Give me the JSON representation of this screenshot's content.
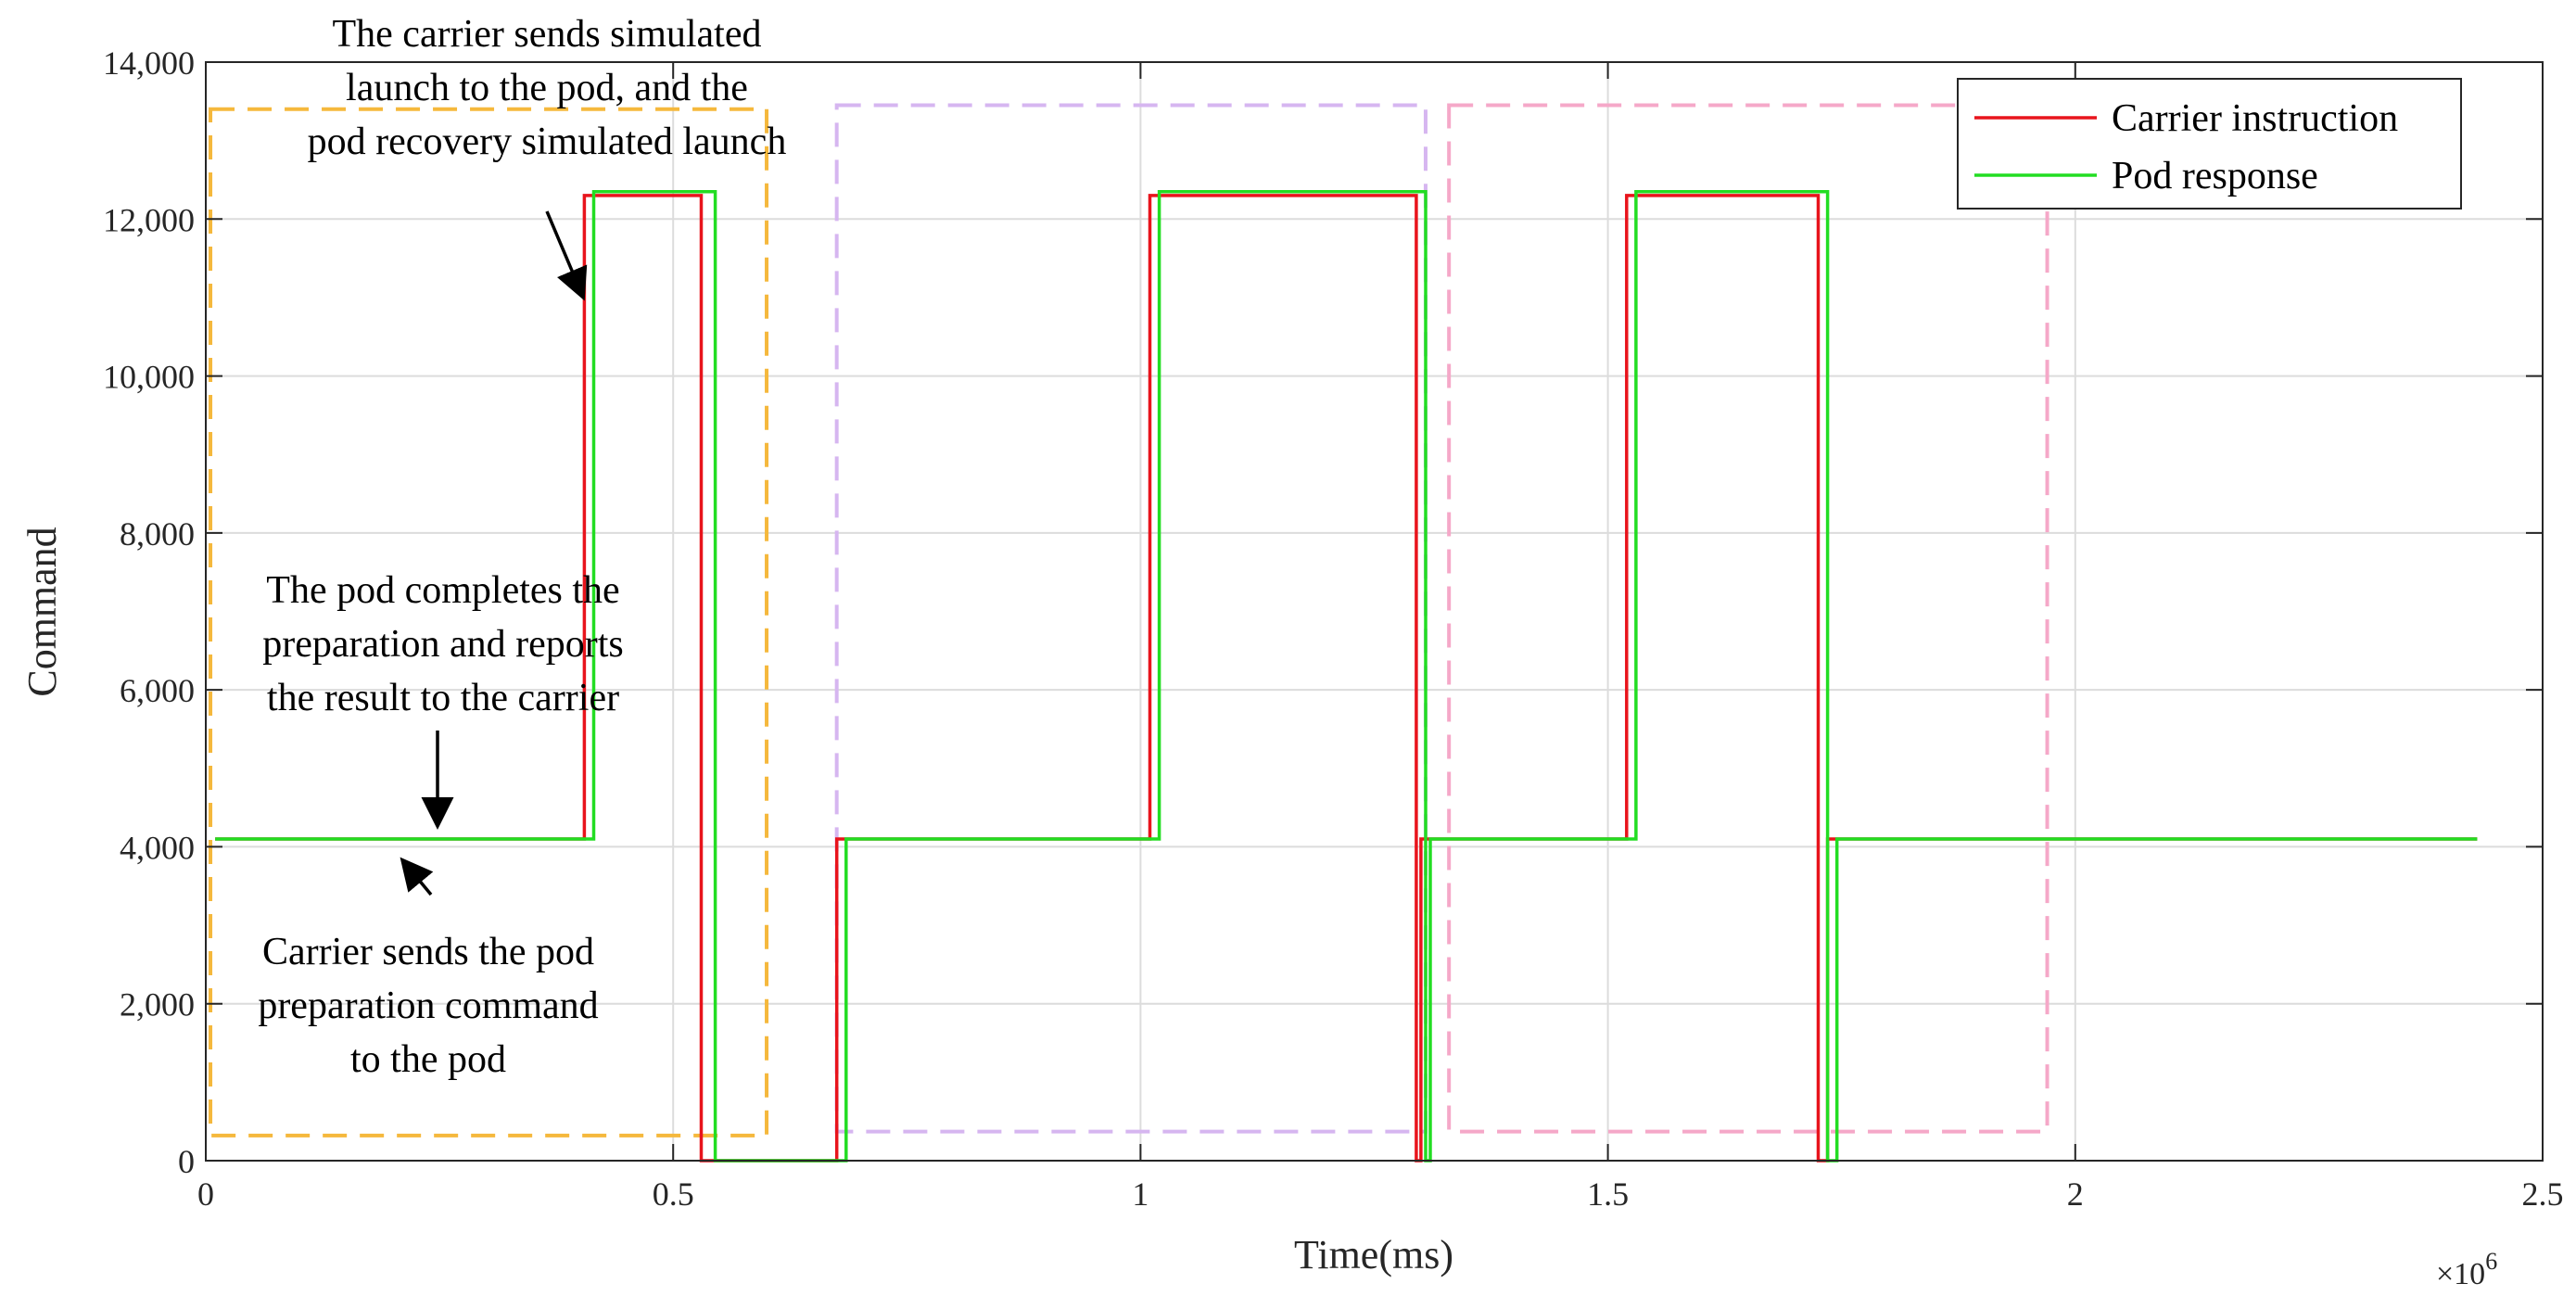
{
  "chart_data": {
    "type": "line",
    "title": "",
    "xlabel": "Time(ms)",
    "ylabel": "Command",
    "x_exponent_label": "×10",
    "x_exponent_power": "6",
    "xlim": [
      0,
      2.5
    ],
    "ylim": [
      0,
      14000
    ],
    "x_ticks": [
      0,
      0.5,
      1,
      1.5,
      2,
      2.5
    ],
    "x_tick_labels": [
      "0",
      "0.5",
      "1",
      "1.5",
      "2",
      "2.5"
    ],
    "y_ticks": [
      0,
      2000,
      4000,
      6000,
      8000,
      10000,
      12000,
      14000
    ],
    "y_tick_labels": [
      "0",
      "2,000",
      "4,000",
      "6,000",
      "8,000",
      "10,000",
      "12,000",
      "14,000"
    ],
    "grid": true,
    "legend_position": "top-right",
    "series": [
      {
        "name": "Carrier instruction",
        "color": "#e8141c",
        "step": true,
        "x": [
          0.01,
          0.405,
          0.405,
          0.53,
          0.53,
          0.675,
          0.675,
          1.01,
          1.01,
          1.295,
          1.295,
          1.3,
          1.3,
          1.52,
          1.52,
          1.725,
          1.725,
          1.735,
          1.735,
          2.43
        ],
        "y": [
          4100,
          4100,
          12300,
          12300,
          0,
          0,
          4100,
          4100,
          12300,
          12300,
          0,
          0,
          4100,
          4100,
          12300,
          12300,
          0,
          0,
          4100,
          4100
        ]
      },
      {
        "name": "Pod response",
        "color": "#22dd22",
        "step": true,
        "x": [
          0.01,
          0.415,
          0.415,
          0.545,
          0.545,
          0.685,
          0.685,
          1.02,
          1.02,
          1.305,
          1.305,
          1.31,
          1.31,
          1.53,
          1.53,
          1.735,
          1.735,
          1.745,
          1.745,
          2.43
        ],
        "y": [
          4100,
          4100,
          12350,
          12350,
          0,
          0,
          4100,
          4100,
          12350,
          12350,
          0,
          0,
          4100,
          4100,
          12350,
          12350,
          0,
          0,
          4100,
          4100
        ]
      }
    ],
    "boxes": [
      {
        "color": "#f5b83c",
        "x0": 0.005,
        "x1": 0.6,
        "y0": 320,
        "y1": 13400
      },
      {
        "color": "#d6b6f0",
        "x0": 0.675,
        "x1": 1.305,
        "y0": 370,
        "y1": 13450
      },
      {
        "color": "#f5a8c8",
        "x0": 1.33,
        "x1": 1.97,
        "y0": 370,
        "y1": 13450
      }
    ],
    "annotations": [
      {
        "lines": [
          "The carrier sends simulated",
          "launch to the pod, and the",
          "pod recovery simulated launch"
        ],
        "arrow_from": [
          0.395,
          11600
        ],
        "arrow_to": [
          0.405,
          11350
        ]
      },
      {
        "lines": [
          "The pod completes the",
          "preparation and reports",
          "the result to the carrier"
        ],
        "arrow_from": [
          0.25,
          5300
        ],
        "arrow_to": [
          0.25,
          4300
        ]
      },
      {
        "lines": [
          "Carrier sends the pod",
          "preparation command",
          "to the pod"
        ],
        "arrow_from": [
          0.245,
          3800
        ],
        "arrow_to": [
          0.21,
          3950
        ]
      }
    ]
  }
}
